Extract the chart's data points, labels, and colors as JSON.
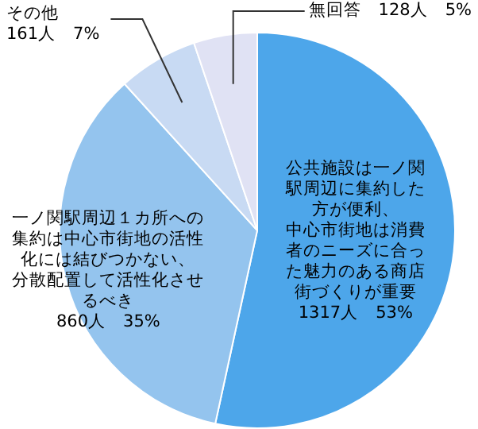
{
  "chart_data": {
    "type": "pie",
    "categories": [
      "公共施設は一ノ関駅周辺に集約した方が便利、中心市街地は消費者のニーズに合った魅力のある商店街づくりが重要",
      "一ノ関駅周辺１カ所への集約は中心市街地の活性化には結びつかない、分散配置して活性化させるべき",
      "その他",
      "無回答"
    ],
    "values": [
      1317,
      860,
      161,
      128
    ],
    "colors": [
      "#4da6ea",
      "#94c4ee",
      "#c8daf3",
      "#e0e2f4"
    ],
    "value_labels": [
      "1317人　53%",
      "860人　35%",
      "161人　7%",
      "128人　5%"
    ]
  }
}
